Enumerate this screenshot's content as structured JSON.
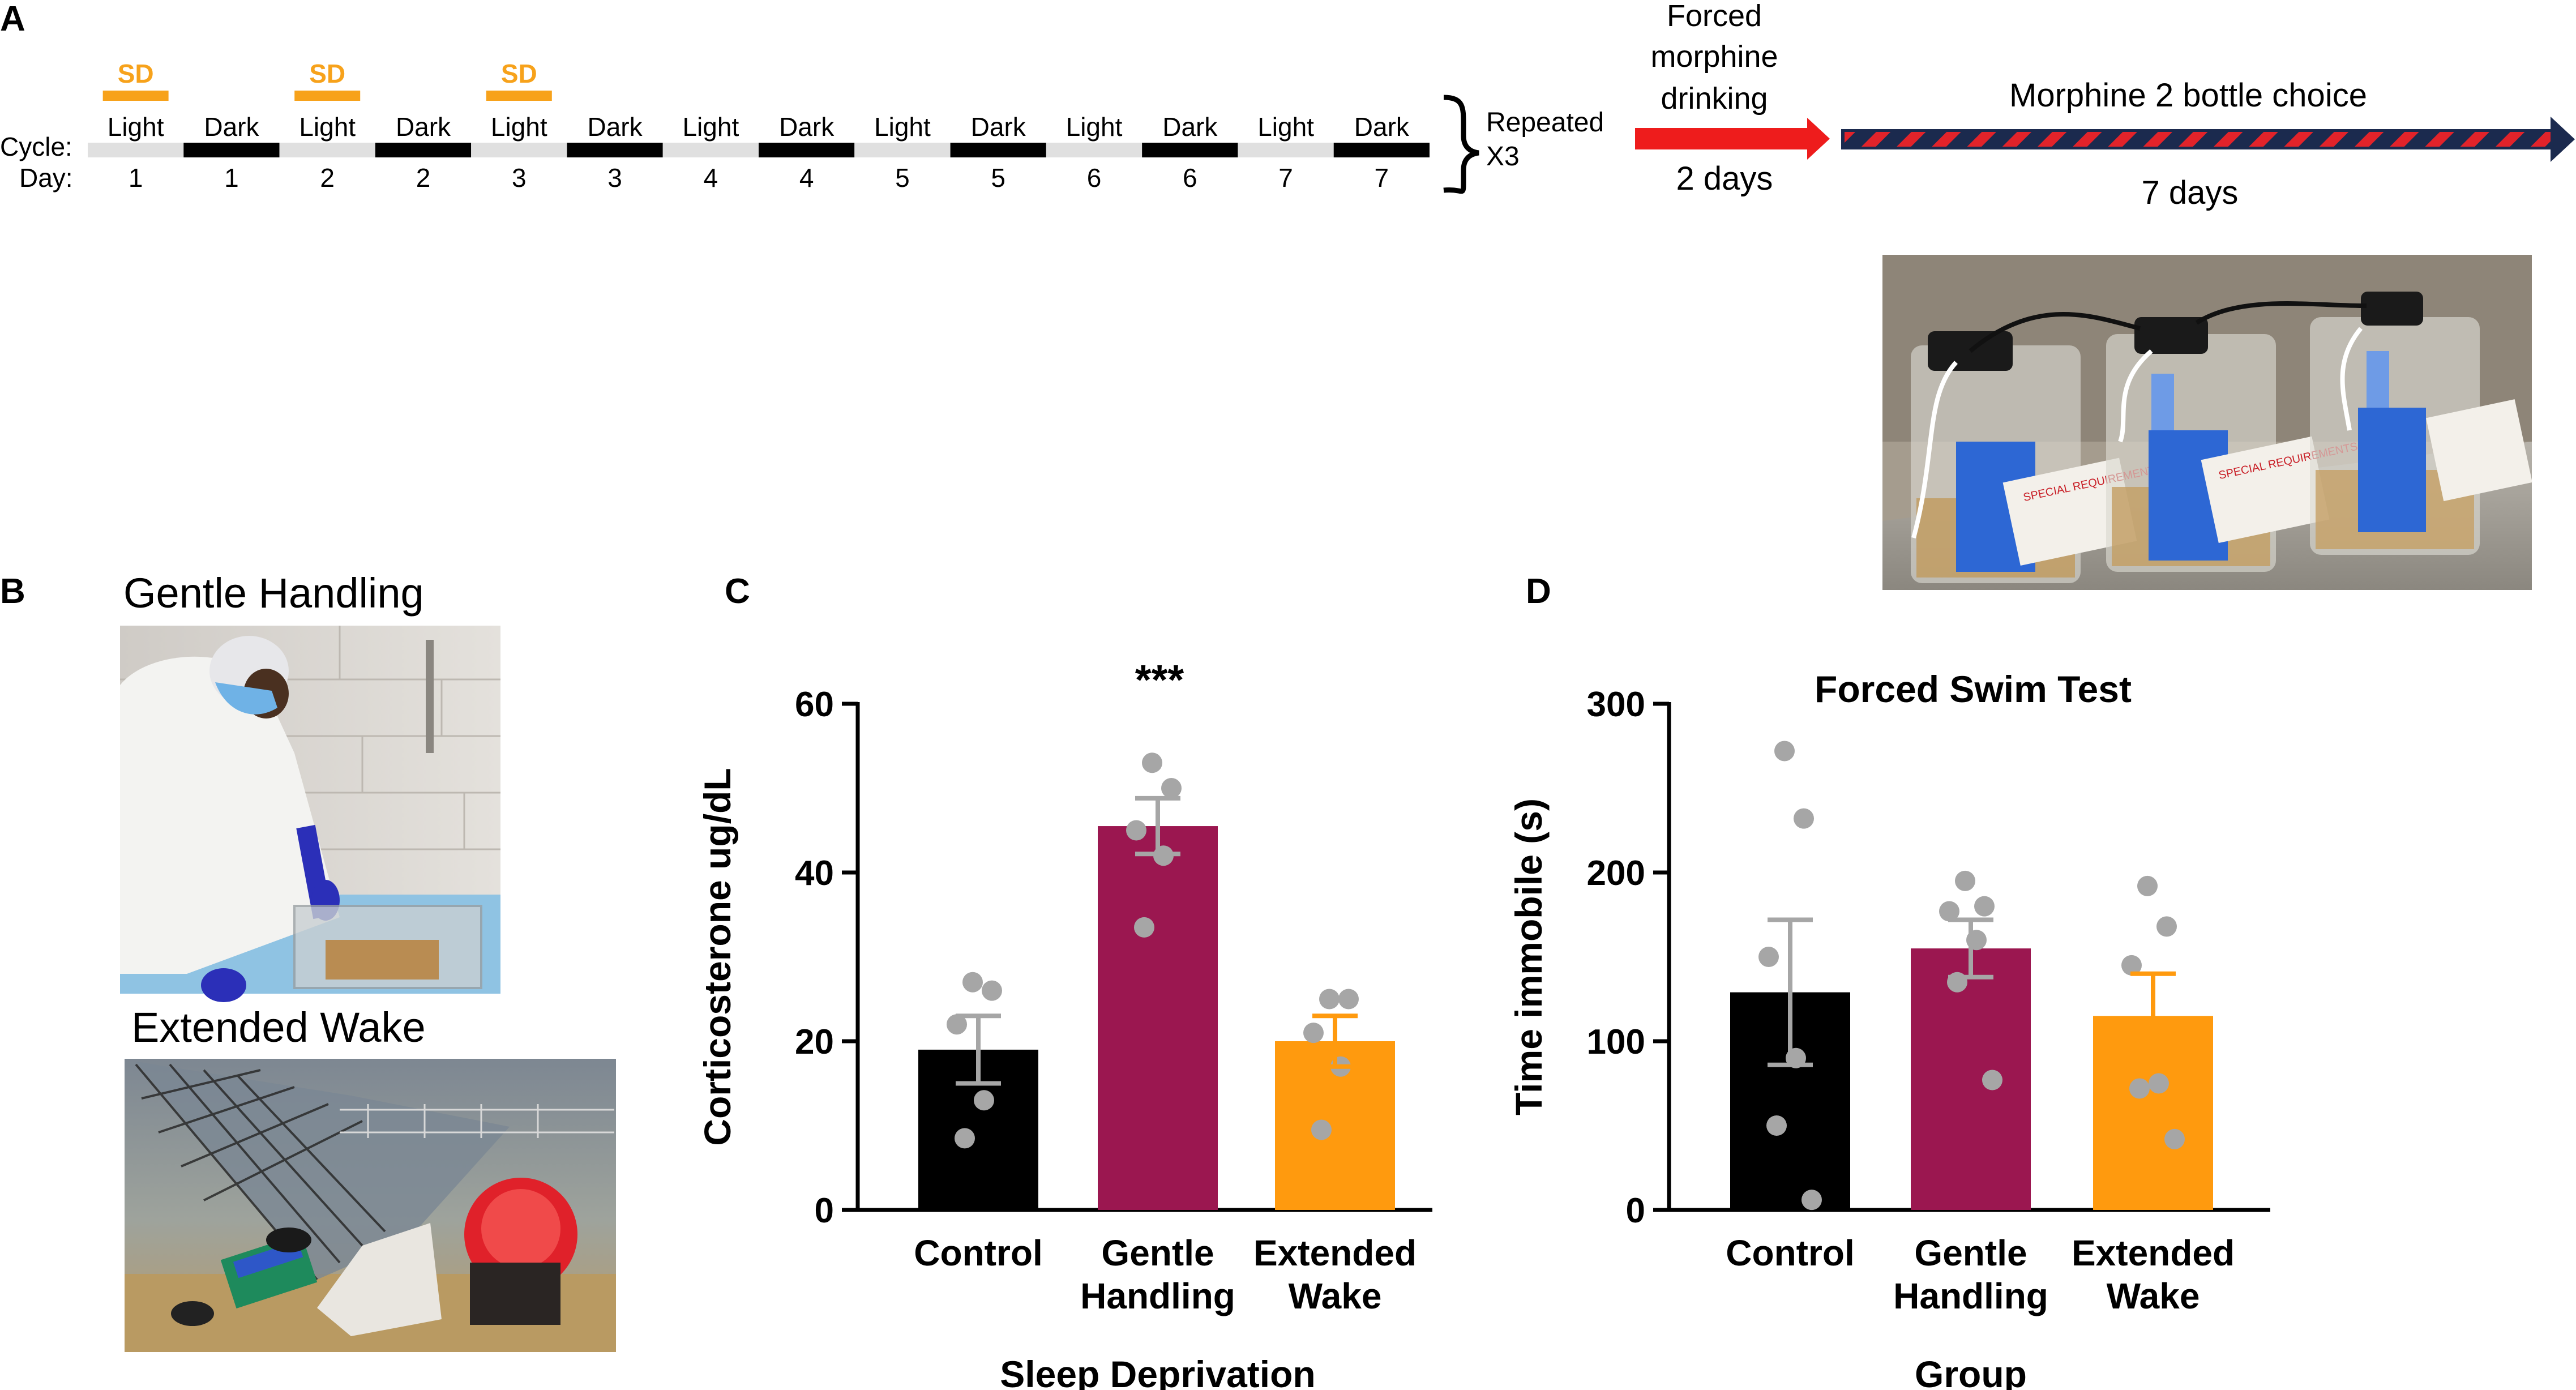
{
  "panels": {
    "a": "A",
    "b": "B",
    "c": "C",
    "d": "D"
  },
  "timeline": {
    "cycle_label": "Cycle:",
    "day_label": "Day:",
    "sd_label": "SD",
    "segments": [
      {
        "phase": "Light",
        "day": "1",
        "sd": true
      },
      {
        "phase": "Dark",
        "day": "1",
        "sd": false
      },
      {
        "phase": "Light",
        "day": "2",
        "sd": true
      },
      {
        "phase": "Dark",
        "day": "2",
        "sd": false
      },
      {
        "phase": "Light",
        "day": "3",
        "sd": true
      },
      {
        "phase": "Dark",
        "day": "3",
        "sd": false
      },
      {
        "phase": "Light",
        "day": "4",
        "sd": false
      },
      {
        "phase": "Dark",
        "day": "4",
        "sd": false
      },
      {
        "phase": "Light",
        "day": "5",
        "sd": false
      },
      {
        "phase": "Dark",
        "day": "5",
        "sd": false
      },
      {
        "phase": "Light",
        "day": "6",
        "sd": false
      },
      {
        "phase": "Dark",
        "day": "6",
        "sd": false
      },
      {
        "phase": "Light",
        "day": "7",
        "sd": false
      },
      {
        "phase": "Dark",
        "day": "7",
        "sd": false
      }
    ],
    "repeated_line1": "Repeated",
    "repeated_line2": "X3",
    "forced_line1": "Forced",
    "forced_line2": "morphine",
    "forced_line3": "drinking",
    "forced_duration": "2 days",
    "choice_title": "Morphine 2 bottle choice",
    "choice_duration": "7 days"
  },
  "photos": {
    "gentle_handling_title": "Gentle Handling",
    "extended_wake_title": "Extended Wake",
    "gentle_tags": {
      "bag": "SPECIAL REQUIREMENTS"
    }
  },
  "colors": {
    "control": "#000000",
    "gentle": "#9b1750",
    "extended": "#ff9a0e",
    "sd": "#f7a21b",
    "dot": "#a6a6a6",
    "forced_arrow": "#ee1c1c",
    "choice_red": "#e2232a",
    "choice_navy": "#1b2a4e"
  },
  "chart_data": [
    {
      "type": "bar",
      "panel": "C",
      "title": "",
      "xlabel": "Sleep Deprivation",
      "ylabel": "Corticosterone ug/dL",
      "ylim": [
        0,
        60
      ],
      "yticks": [
        "0",
        "20",
        "40",
        "60"
      ],
      "ytick_values": [
        0,
        20,
        40,
        60
      ],
      "categories": [
        {
          "line1": "Control",
          "line2": ""
        },
        {
          "line1": "Gentle",
          "line2": "Handling"
        },
        {
          "line1": "Extended",
          "line2": "Wake"
        }
      ],
      "values": [
        19,
        45.5,
        20
      ],
      "sem": [
        4,
        3.3,
        3
      ],
      "points": [
        [
          27,
          26,
          22,
          13,
          8.5
        ],
        [
          53,
          50,
          45,
          42,
          33.5
        ],
        [
          25,
          25,
          21,
          17,
          9.5
        ]
      ],
      "annotation": "***",
      "annotation_index": 1
    },
    {
      "type": "bar",
      "panel": "D",
      "title": "Forced Swim Test",
      "xlabel": "Group",
      "ylabel": "Time immobile (s)",
      "ylim": [
        0,
        300
      ],
      "yticks": [
        "0",
        "100",
        "200",
        "300"
      ],
      "ytick_values": [
        0,
        100,
        200,
        300
      ],
      "categories": [
        {
          "line1": "Control",
          "line2": ""
        },
        {
          "line1": "Gentle",
          "line2": "Handling"
        },
        {
          "line1": "Extended",
          "line2": "Wake"
        }
      ],
      "values": [
        129,
        155,
        115
      ],
      "sem": [
        43,
        17,
        25
      ],
      "points": [
        [
          272,
          232,
          150,
          90,
          50,
          6
        ],
        [
          195,
          180,
          177,
          160,
          135,
          77
        ],
        [
          192,
          168,
          145,
          75,
          72,
          42
        ]
      ]
    }
  ]
}
